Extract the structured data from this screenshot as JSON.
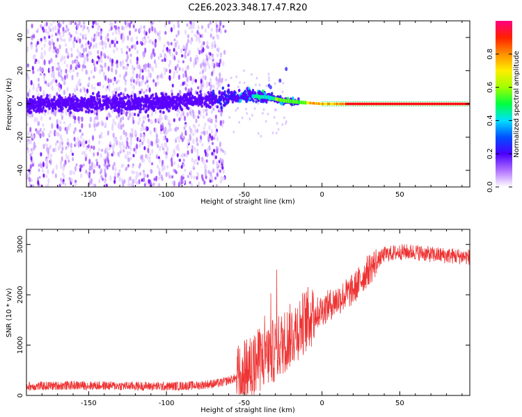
{
  "title": "C2E6.2023.348.17.47.R20",
  "chart_data": [
    {
      "type": "heatmap",
      "title": "",
      "xlabel": "Height of straight line (km)",
      "ylabel": "Frequency (Hz)",
      "xlim": [
        -190,
        95
      ],
      "ylim": [
        -50,
        50
      ],
      "xticks": [
        -150,
        -100,
        -50,
        0,
        50
      ],
      "yticks": [
        -40,
        -20,
        0,
        20,
        40
      ],
      "colorbar": {
        "label": "Normalized spectral amplitude",
        "range": [
          0,
          1
        ],
        "ticks": [
          "0.0",
          "0.2",
          "0.4",
          "0.6",
          "0.8"
        ]
      },
      "ridge": {
        "x": [
          -190,
          -150,
          -100,
          -70,
          -50,
          -35,
          -25,
          -15,
          0,
          20,
          50,
          95
        ],
        "frequency": [
          0,
          0,
          1,
          3,
          5,
          4,
          2,
          1,
          0,
          0,
          0,
          0
        ]
      },
      "grid": false
    },
    {
      "type": "line",
      "title": "",
      "xlabel": "Height of straight line (km)",
      "ylabel": "SNR (10 * v/v)",
      "xlim": [
        -190,
        95
      ],
      "ylim": [
        0,
        3300
      ],
      "xticks": [
        -150,
        -100,
        -50,
        0,
        50
      ],
      "yticks": [
        0,
        1000,
        2000,
        3000
      ],
      "series": [
        {
          "x": [
            -190,
            -160,
            -130,
            -100,
            -80,
            -65,
            -55,
            -48,
            -40,
            -30,
            -20,
            -10,
            0,
            10,
            20,
            30,
            40,
            50,
            60,
            70,
            80,
            95
          ],
          "values": [
            180,
            200,
            190,
            180,
            200,
            250,
            350,
            500,
            700,
            900,
            1200,
            1500,
            1700,
            1900,
            2100,
            2500,
            2800,
            2850,
            2850,
            2800,
            2780,
            2750
          ],
          "color": "#ee3333"
        }
      ],
      "grid": false
    }
  ]
}
